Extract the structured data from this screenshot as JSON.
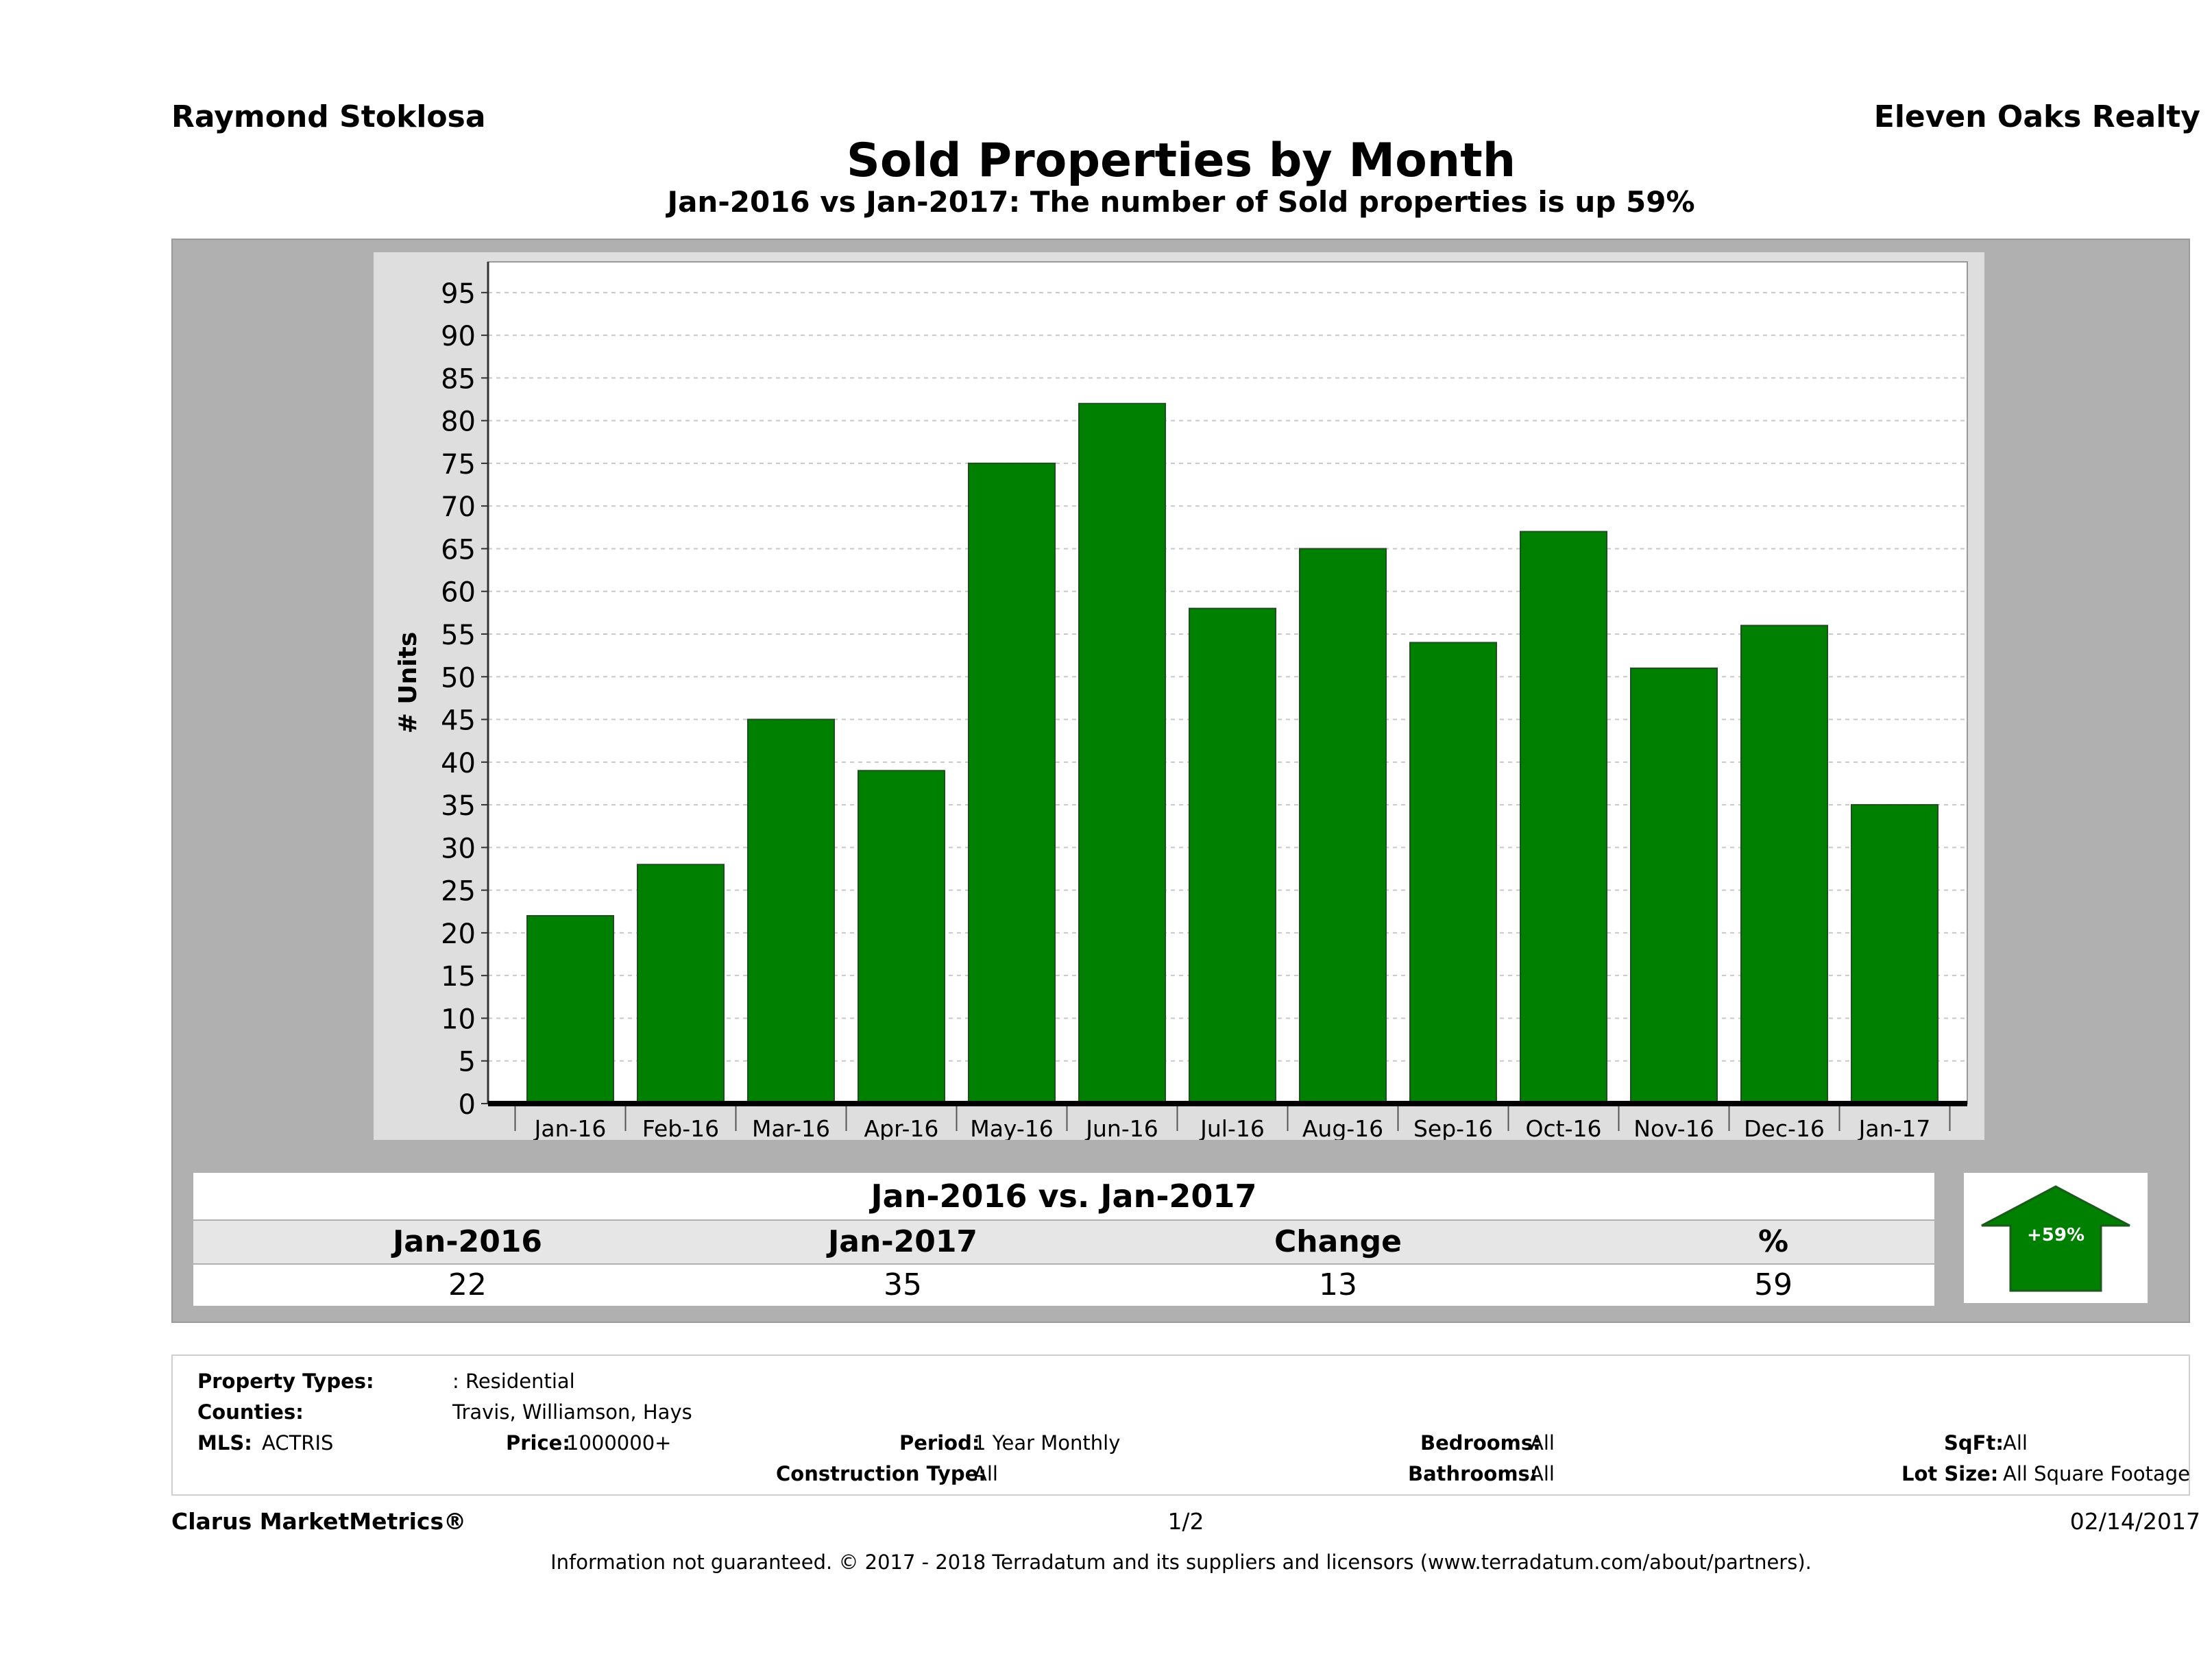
{
  "header": {
    "agent_name": "Raymond Stoklosa",
    "brokerage": "Eleven Oaks Realty",
    "title": "Sold Properties by Month",
    "subtitle": "Jan-2016 vs Jan-2017: The number of Sold  properties is up 59%"
  },
  "chart_data": {
    "type": "bar",
    "categories": [
      "Jan-16",
      "Feb-16",
      "Mar-16",
      "Apr-16",
      "May-16",
      "Jun-16",
      "Jul-16",
      "Aug-16",
      "Sep-16",
      "Oct-16",
      "Nov-16",
      "Dec-16",
      "Jan-17"
    ],
    "values": [
      22,
      28,
      45,
      39,
      75,
      82,
      58,
      65,
      54,
      67,
      51,
      56,
      35
    ],
    "ylabel": "# Units",
    "xlabel": "",
    "ylim": [
      0,
      95
    ],
    "yticks": [
      0,
      5,
      10,
      15,
      20,
      25,
      30,
      35,
      40,
      45,
      50,
      55,
      60,
      65,
      70,
      75,
      80,
      85,
      90,
      95
    ],
    "grid": true,
    "bar_color": "#008000"
  },
  "summary": {
    "heading": "Jan-2016 vs. Jan-2017",
    "labels": [
      "Jan-2016",
      "Jan-2017",
      "Change",
      "%"
    ],
    "values": [
      "22",
      "35",
      "13",
      "59"
    ],
    "badge": "+59%",
    "badge_color": "#008000"
  },
  "criteria": {
    "property_types_label": "Property Types:",
    "property_types_value": ": Residential",
    "counties_label": "Counties:",
    "counties_value": "Travis, Williamson, Hays",
    "mls_label": "MLS:",
    "mls_value": "ACTRIS",
    "price_label": "Price:",
    "price_value": "1000000+",
    "period_label": "Period:",
    "period_value": "1 Year Monthly",
    "construction_label": "Construction Type:",
    "construction_value": "All",
    "bedrooms_label": "Bedrooms:",
    "bedrooms_value": "All",
    "bathrooms_label": "Bathrooms:",
    "bathrooms_value": "All",
    "sqft_label": "SqFt:",
    "sqft_value": "All",
    "lotsize_label": "Lot Size:",
    "lotsize_value": "All Square Footage"
  },
  "footer": {
    "brand": "Clarus MarketMetrics®",
    "page": "1/2",
    "date": "02/14/2017",
    "disclaimer": "Information not guaranteed. © 2017 - 2018 Terradatum and its suppliers and licensors (www.terradatum.com/about/partners)."
  }
}
